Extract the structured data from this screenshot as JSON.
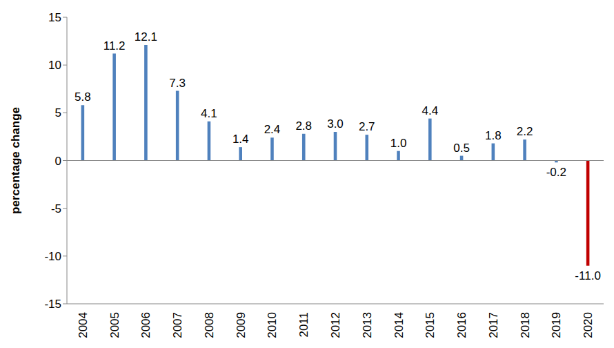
{
  "chart_data": {
    "type": "bar",
    "y_label": "percentage change",
    "categories": [
      "2004",
      "2005",
      "2006",
      "2007",
      "2008",
      "2009",
      "2010",
      "2011",
      "2012",
      "2013",
      "2014",
      "2015",
      "2016",
      "2017",
      "2018",
      "2019",
      "2020"
    ],
    "values": [
      5.8,
      11.2,
      12.1,
      7.3,
      4.1,
      1.4,
      2.4,
      2.8,
      3.0,
      2.7,
      1.0,
      4.4,
      0.5,
      1.8,
      2.2,
      -0.2,
      -11.0
    ],
    "value_labels": [
      "5.8",
      "11.2",
      "12.1",
      "7.3",
      "4.1",
      "1.4",
      "2.4",
      "2.8",
      "3.0",
      "2.7",
      "1.0",
      "4.4",
      "0.5",
      "1.8",
      "2.2",
      "-0.2",
      "-11.0"
    ],
    "colors": [
      "#4f81bd",
      "#4f81bd",
      "#4f81bd",
      "#4f81bd",
      "#4f81bd",
      "#4f81bd",
      "#4f81bd",
      "#4f81bd",
      "#4f81bd",
      "#4f81bd",
      "#4f81bd",
      "#4f81bd",
      "#4f81bd",
      "#4f81bd",
      "#4f81bd",
      "#4f81bd",
      "#c00000"
    ],
    "ylim": [
      -15,
      15
    ],
    "yticks": [
      -15,
      -10,
      -5,
      0,
      5,
      10,
      15
    ],
    "grid": false,
    "data_labels": true
  }
}
